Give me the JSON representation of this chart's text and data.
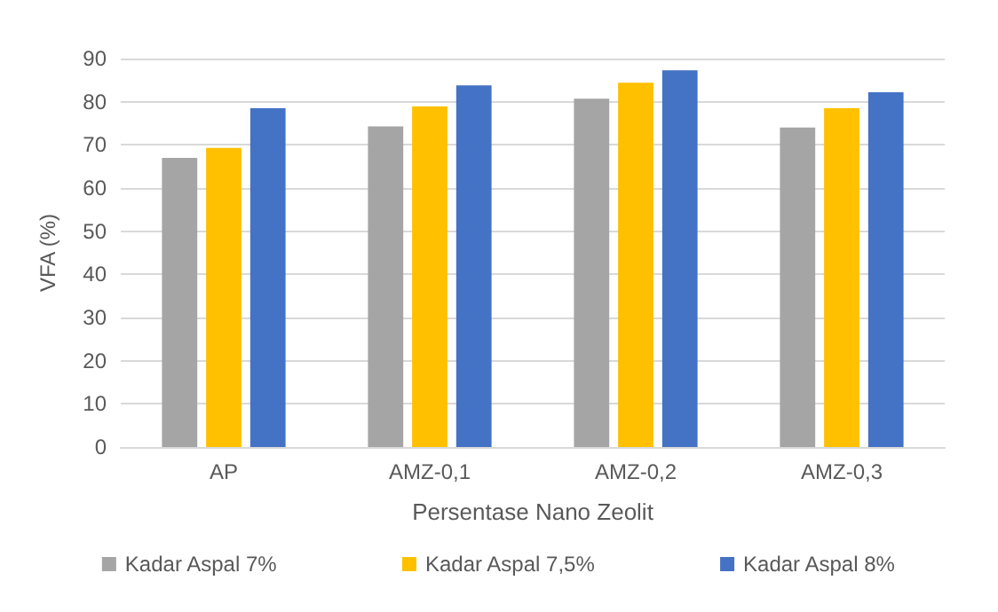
{
  "chart_data": {
    "type": "bar",
    "xlabel": "Persentase Nano Zeolit",
    "ylabel": "VFA (%)",
    "categories": [
      "AP",
      "AMZ-0,1",
      "AMZ-0,2",
      "AMZ-0,3"
    ],
    "series": [
      {
        "name": "Kadar Aspal 7%",
        "color": "#a5a5a5",
        "values": [
          67,
          74.3,
          80.7,
          74
        ]
      },
      {
        "name": "Kadar Aspal 7,5%",
        "color": "#ffc000",
        "values": [
          69.3,
          78.9,
          84.4,
          78.5
        ]
      },
      {
        "name": "Kadar Aspal 8%",
        "color": "#4472c4",
        "values": [
          78.5,
          83.8,
          87.3,
          82.2
        ]
      }
    ],
    "ylim": [
      0,
      90
    ],
    "yticks": [
      0,
      10,
      20,
      30,
      40,
      50,
      60,
      70,
      80,
      90
    ],
    "grid": "y",
    "legend": "bottom"
  }
}
